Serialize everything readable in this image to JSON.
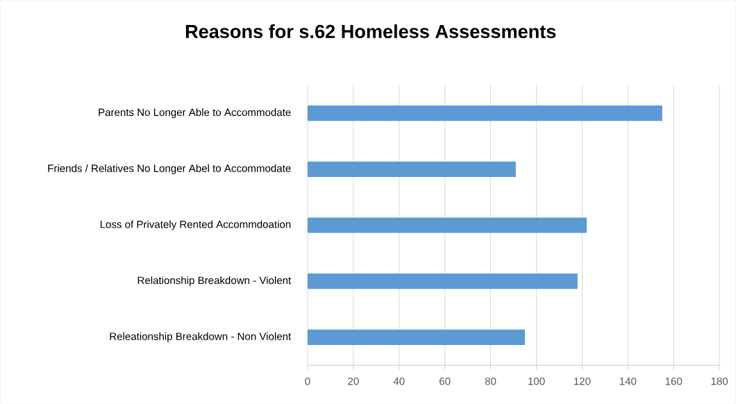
{
  "chart_data": {
    "type": "bar",
    "orientation": "horizontal",
    "title": "Reasons for s.62 Homeless Assessments",
    "categories": [
      "Parents No Longer Able to Accommodate",
      "Friends / Relatives No Longer Abel to Accommodate",
      "Loss of Privately Rented Accommdoation",
      "Relationship Breakdown - Violent",
      "Releationship Breakdown - Non Violent"
    ],
    "values": [
      155,
      91,
      122,
      118,
      95
    ],
    "color": "#5b9bd5",
    "xlim": [
      0,
      180
    ],
    "xticks": [
      0,
      20,
      40,
      60,
      80,
      100,
      120,
      140,
      160,
      180
    ],
    "grid": "x"
  }
}
